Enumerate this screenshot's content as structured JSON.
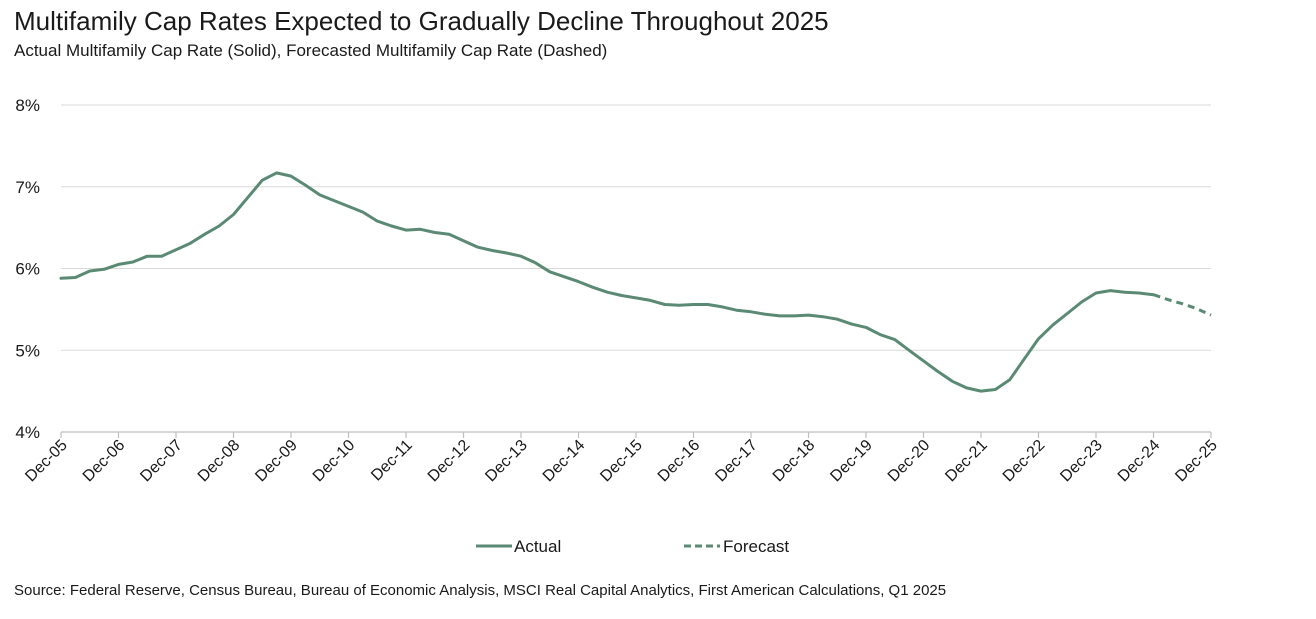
{
  "header": {
    "title": "Multifamily Cap Rates Expected to Gradually Decline Throughout 2025",
    "subtitle": "Actual Multifamily Cap Rate (Solid), Forecasted Multifamily Cap Rate (Dashed)"
  },
  "footer": {
    "source": "Source: Federal Reserve, Census Bureau, Bureau of Economic Analysis, MSCI Real Capital Analytics, First American Calculations, Q1 2025"
  },
  "colors": {
    "line": "#5b8a74",
    "grid": "#d9d9d9",
    "axis": "#bfbfbf"
  },
  "chart_data": {
    "type": "line",
    "title": "Multifamily Cap Rates Expected to Gradually Decline Throughout 2025",
    "xlabel": "",
    "ylabel": "",
    "ylim": [
      4,
      8
    ],
    "y_ticks": [
      4,
      5,
      6,
      7,
      8
    ],
    "y_tick_labels": [
      "4%",
      "5%",
      "6%",
      "7%",
      "8%"
    ],
    "x_range": [
      2005.917,
      2025.917
    ],
    "x_tick_labels": [
      "Dec-05",
      "Dec-06",
      "Dec-07",
      "Dec-08",
      "Dec-09",
      "Dec-10",
      "Dec-11",
      "Dec-12",
      "Dec-13",
      "Dec-14",
      "Dec-15",
      "Dec-16",
      "Dec-17",
      "Dec-18",
      "Dec-19",
      "Dec-20",
      "Dec-21",
      "Dec-22",
      "Dec-23",
      "Dec-24",
      "Dec-25"
    ],
    "grid": true,
    "legend_position": "bottom-center",
    "series": [
      {
        "name": "Actual",
        "style": "solid",
        "x": [
          2005.917,
          2006.167,
          2006.417,
          2006.667,
          2006.917,
          2007.167,
          2007.417,
          2007.667,
          2007.917,
          2008.167,
          2008.417,
          2008.667,
          2008.917,
          2009.167,
          2009.417,
          2009.667,
          2009.917,
          2010.167,
          2010.417,
          2010.667,
          2010.917,
          2011.167,
          2011.417,
          2011.667,
          2011.917,
          2012.167,
          2012.417,
          2012.667,
          2012.917,
          2013.167,
          2013.417,
          2013.667,
          2013.917,
          2014.167,
          2014.417,
          2014.667,
          2014.917,
          2015.167,
          2015.417,
          2015.667,
          2015.917,
          2016.167,
          2016.417,
          2016.667,
          2016.917,
          2017.167,
          2017.417,
          2017.667,
          2017.917,
          2018.167,
          2018.417,
          2018.667,
          2018.917,
          2019.167,
          2019.417,
          2019.667,
          2019.917,
          2020.167,
          2020.417,
          2020.667,
          2020.917,
          2021.167,
          2021.417,
          2021.667,
          2021.917,
          2022.167,
          2022.417,
          2022.667,
          2022.917,
          2023.167,
          2023.417,
          2023.667,
          2023.917,
          2024.167,
          2024.417,
          2024.667,
          2024.917
        ],
        "values": [
          5.88,
          5.89,
          5.97,
          5.99,
          6.05,
          6.08,
          6.15,
          6.15,
          6.23,
          6.31,
          6.42,
          6.52,
          6.66,
          6.87,
          7.08,
          7.17,
          7.13,
          7.02,
          6.9,
          6.83,
          6.76,
          6.69,
          6.58,
          6.52,
          6.47,
          6.48,
          6.44,
          6.42,
          6.34,
          6.26,
          6.22,
          6.19,
          6.15,
          6.07,
          5.96,
          5.9,
          5.84,
          5.77,
          5.71,
          5.67,
          5.64,
          5.61,
          5.56,
          5.55,
          5.56,
          5.56,
          5.53,
          5.49,
          5.47,
          5.44,
          5.42,
          5.42,
          5.43,
          5.41,
          5.38,
          5.32,
          5.28,
          5.19,
          5.13,
          5.0,
          4.87,
          4.74,
          4.62,
          4.54,
          4.5,
          4.52,
          4.64,
          4.89,
          5.14,
          5.31,
          5.45,
          5.59,
          5.7,
          5.73,
          5.71,
          5.7,
          5.68
        ]
      },
      {
        "name": "Forecast",
        "style": "dashed",
        "x": [
          2024.917,
          2025.167,
          2025.417,
          2025.667,
          2025.917
        ],
        "values": [
          5.68,
          5.62,
          5.57,
          5.51,
          5.43
        ]
      }
    ]
  }
}
